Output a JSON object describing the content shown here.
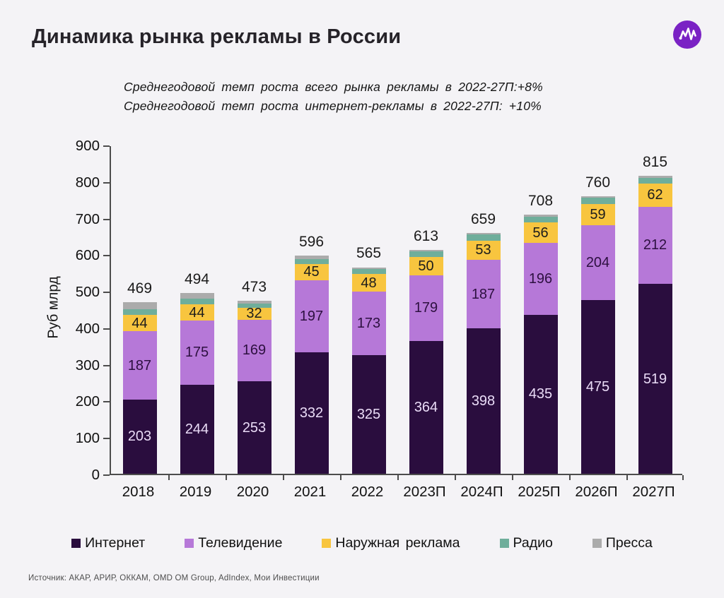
{
  "header": {
    "logo": {
      "glyph": "zigzag-chart-mark",
      "bg_color": "#7a22c4",
      "stroke_color": "#ffffff"
    }
  },
  "footer": {
    "source": "Источник: АКАР, АРИР, ОККАМ, OMD OM Group, AdIndex, Мои Инвестиции"
  },
  "chart_data": {
    "type": "bar",
    "stacked": true,
    "title": "Динамика рынка рекламы в России",
    "subtitle_lines": [
      "Среднегодовой темп роста всего рынка рекламы в 2022-27П:+8%",
      "Среднегодовой темп роста интернет-рекламы в 2022-27П: +10%"
    ],
    "xlabel": "",
    "ylabel": "Руб млрд",
    "ylim": [
      0,
      900
    ],
    "yticks": [
      0,
      100,
      200,
      300,
      400,
      500,
      600,
      700,
      800,
      900
    ],
    "grid": false,
    "legend_position": "bottom",
    "categories": [
      "2018",
      "2019",
      "2020",
      "2021",
      "2022",
      "2023П",
      "2024П",
      "2025П",
      "2026П",
      "2027П"
    ],
    "series": [
      {
        "key": "internet",
        "name": "Интернет",
        "color": "#2a0d3e",
        "label_color": "#eadcf7",
        "values": [
          203,
          244,
          253,
          332,
          325,
          364,
          398,
          435,
          475,
          519
        ],
        "labels_shown": true
      },
      {
        "key": "tv",
        "name": "Телевидение",
        "color": "#b678d8",
        "label_color": "#2d1040",
        "values": [
          187,
          175,
          169,
          197,
          173,
          179,
          187,
          196,
          204,
          212
        ],
        "labels_shown": true
      },
      {
        "key": "outdoor",
        "name": "Наружная реклама",
        "color": "#f8c53f",
        "label_color": "#1c1c1c",
        "values": [
          44,
          44,
          32,
          45,
          48,
          50,
          53,
          56,
          59,
          62
        ],
        "labels_shown": true
      },
      {
        "key": "radio",
        "name": "Радио",
        "color": "#6fae9b",
        "values": [
          17,
          16,
          11,
          14,
          14,
          15,
          16,
          16,
          17,
          17
        ],
        "labels_shown": false,
        "estimated_from_pixels": true
      },
      {
        "key": "press",
        "name": "Пресса",
        "color": "#ababab",
        "values": [
          18,
          15,
          8,
          8,
          5,
          5,
          5,
          5,
          5,
          5
        ],
        "labels_shown": false,
        "estimated_from_pixels": true
      }
    ],
    "totals": [
      469,
      494,
      473,
      596,
      565,
      613,
      659,
      708,
      760,
      815
    ]
  }
}
